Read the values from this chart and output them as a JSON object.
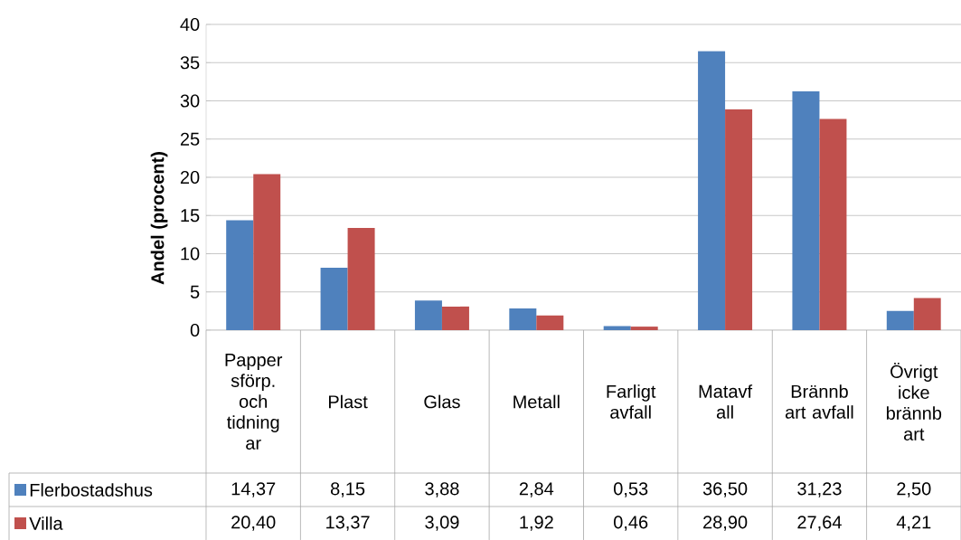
{
  "chart_data": {
    "type": "bar",
    "ylabel": "Andel (procent)",
    "categories": [
      "Papper sförp. och tidning ar",
      "Plast",
      "Glas",
      "Metall",
      "Farligt avfall",
      "Matavf all",
      "Brännb art avfall",
      "Övrigt icke brännb art"
    ],
    "series": [
      {
        "name": "Flerbostadshus",
        "color": "#4f81bd",
        "values": [
          14.37,
          8.15,
          3.88,
          2.84,
          0.53,
          36.5,
          31.23,
          2.5
        ],
        "value_labels": [
          "14,37",
          "8,15",
          "3,88",
          "2,84",
          "0,53",
          "36,50",
          "31,23",
          "2,50"
        ]
      },
      {
        "name": "Villa",
        "color": "#c0504d",
        "values": [
          20.4,
          13.37,
          3.09,
          1.92,
          0.46,
          28.9,
          27.64,
          4.21
        ],
        "value_labels": [
          "20,40",
          "13,37",
          "3,09",
          "1,92",
          "0,46",
          "28,90",
          "27,64",
          "4,21"
        ]
      }
    ],
    "ylim": [
      0,
      40
    ],
    "yticks": [
      0,
      5,
      10,
      15,
      20,
      25,
      30,
      35,
      40
    ],
    "grid": "y",
    "legend": "bottom"
  }
}
